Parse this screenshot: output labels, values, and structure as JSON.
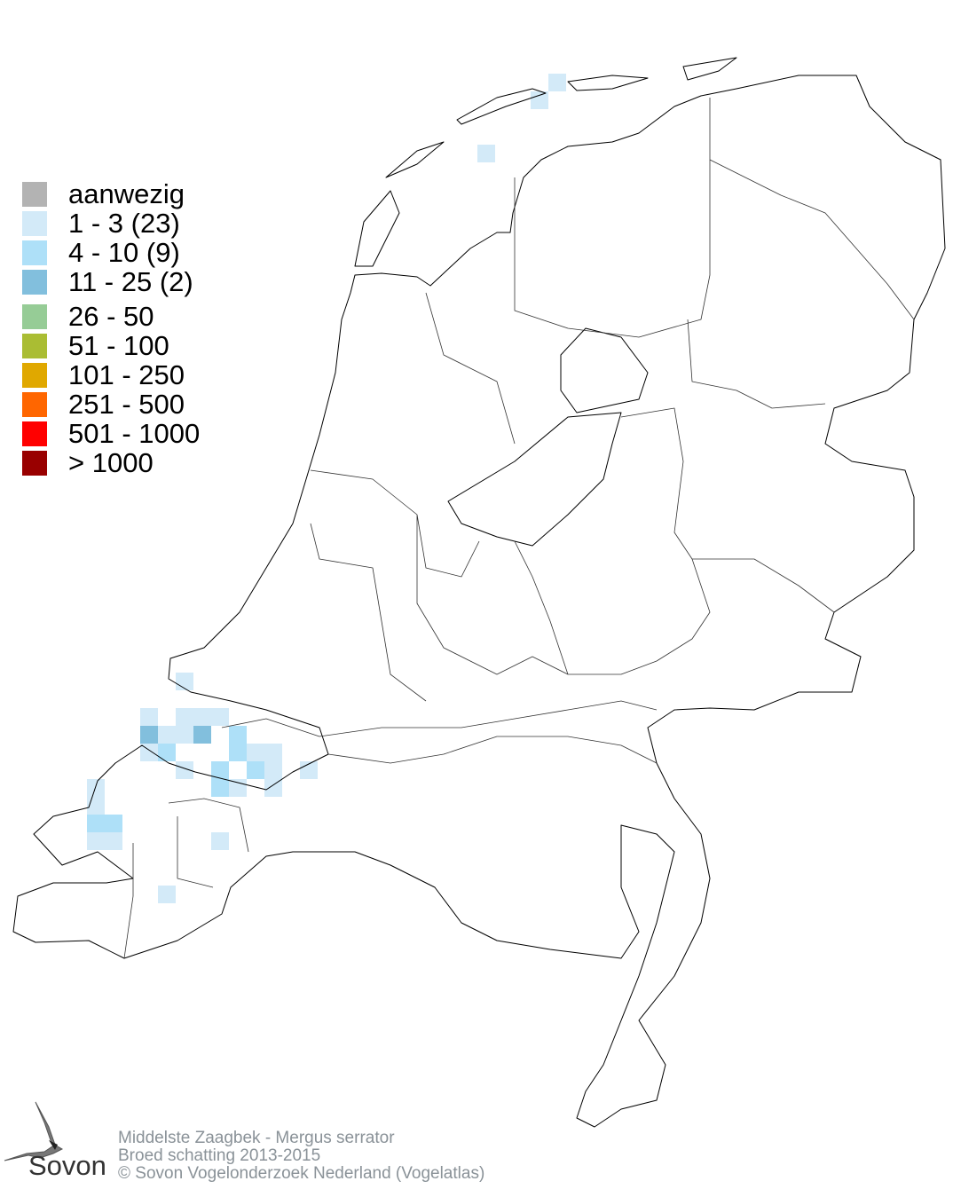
{
  "legend": {
    "items": [
      {
        "label": "aanwezig",
        "color": "#b3b3b3"
      },
      {
        "label": "1 - 3 (23)",
        "color": "#d3eaf8"
      },
      {
        "label": "4 - 10 (9)",
        "color": "#aee0f8"
      },
      {
        "label": "11 - 25 (2)",
        "color": "#82bfdd"
      },
      {
        "label": "26 - 50",
        "color": "#96cc96"
      },
      {
        "label": "51 - 100",
        "color": "#aabd33"
      },
      {
        "label": "101 - 250",
        "color": "#e0a800"
      },
      {
        "label": "251 - 500",
        "color": "#ff6600"
      },
      {
        "label": "501 - 1000",
        "color": "#ff0000"
      },
      {
        "label": "> 1000",
        "color": "#990000"
      }
    ]
  },
  "logo": {
    "text": "Sovon",
    "icon": "swallow-icon"
  },
  "credits": {
    "species": "Middelste Zaagbek - Mergus serrator",
    "survey": "Broed schatting 2013-2015",
    "copyright": "© Sovon Vogelonderzoek Nederland (Vogelatlas)"
  }
}
